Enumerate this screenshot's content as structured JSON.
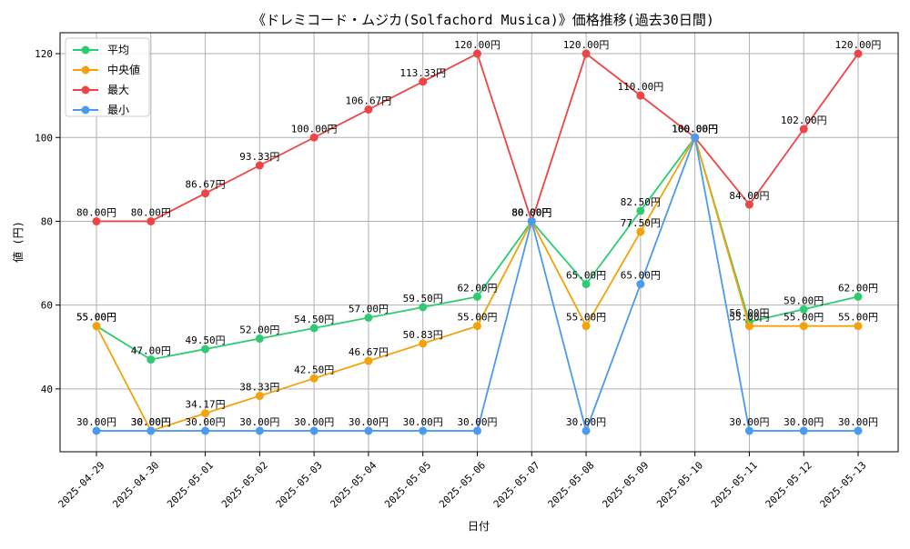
{
  "chart_data": {
    "type": "line",
    "title": "《ドレミコード・ムジカ(Solfachord Musica)》価格推移(過去30日間)",
    "xlabel": "日付",
    "ylabel": "値 (円)",
    "ylim": [
      25,
      125
    ],
    "yticks": [
      40,
      60,
      80,
      100,
      120
    ],
    "grid": true,
    "legend_position": "top-left",
    "value_suffix": "円",
    "categories": [
      "2025-04-29",
      "2025-04-30",
      "2025-05-01",
      "2025-05-02",
      "2025-05-03",
      "2025-05-04",
      "2025-05-05",
      "2025-05-06",
      "2025-05-07",
      "2025-05-08",
      "2025-05-09",
      "2025-05-10",
      "2025-05-11",
      "2025-05-12",
      "2025-05-13"
    ],
    "series": [
      {
        "name": "平均",
        "color": "#2ecc71",
        "values": [
          55.0,
          47.0,
          49.5,
          52.0,
          54.5,
          57.0,
          59.5,
          62.0,
          80.0,
          65.0,
          82.5,
          100.0,
          56.0,
          59.0,
          62.0
        ]
      },
      {
        "name": "中央値",
        "color": "#f5a20a",
        "values": [
          55.0,
          30.0,
          34.17,
          38.33,
          42.5,
          46.67,
          50.83,
          55.0,
          80.0,
          55.0,
          77.5,
          100.0,
          55.0,
          55.0,
          55.0
        ]
      },
      {
        "name": "最大",
        "color": "#ef4444",
        "values": [
          80.0,
          80.0,
          86.67,
          93.33,
          100.0,
          106.67,
          113.33,
          120.0,
          80.0,
          120.0,
          110.0,
          100.0,
          84.0,
          102.0,
          120.0
        ]
      },
      {
        "name": "最小",
        "color": "#4a9af0",
        "values": [
          30.0,
          30.0,
          30.0,
          30.0,
          30.0,
          30.0,
          30.0,
          30.0,
          80.0,
          30.0,
          65.0,
          100.0,
          30.0,
          30.0,
          30.0
        ]
      }
    ]
  }
}
